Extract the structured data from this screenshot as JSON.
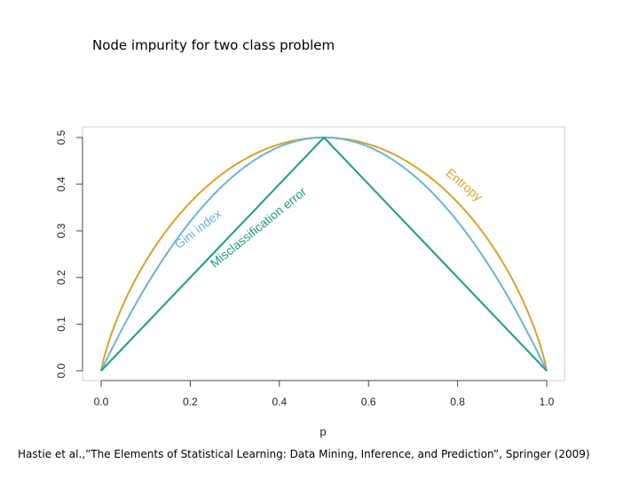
{
  "slide": {
    "title": "Node impurity for two class problem",
    "citation": "Hastie et al.,”The Elements of Statistical Learning: Data Mining, Inference, and Prediction”, Springer (2009)"
  },
  "chart_data": {
    "type": "line",
    "title": "",
    "xlabel": "p",
    "ylabel": "",
    "xlim": [
      0,
      1
    ],
    "ylim": [
      0,
      0.5
    ],
    "x_ticks": [
      0.0,
      0.2,
      0.4,
      0.6,
      0.8,
      1.0
    ],
    "x_tick_labels": [
      "0.0",
      "0.2",
      "0.4",
      "0.6",
      "0.8",
      "1.0"
    ],
    "y_ticks": [
      0.0,
      0.1,
      0.2,
      0.3,
      0.4,
      0.5
    ],
    "y_tick_labels": [
      "0.0",
      "0.1",
      "0.2",
      "0.3",
      "0.4",
      "0.5"
    ],
    "grid": false,
    "x": [
      0.0,
      0.05,
      0.1,
      0.15,
      0.2,
      0.25,
      0.3,
      0.35,
      0.4,
      0.45,
      0.5,
      0.55,
      0.6,
      0.65,
      0.7,
      0.75,
      0.8,
      0.85,
      0.9,
      0.95,
      1.0
    ],
    "series": [
      {
        "name": "Entropy",
        "color": "#d9a22b",
        "values": [
          0.0,
          0.143,
          0.234,
          0.305,
          0.361,
          0.406,
          0.441,
          0.467,
          0.485,
          0.496,
          0.5,
          0.496,
          0.485,
          0.467,
          0.441,
          0.406,
          0.361,
          0.305,
          0.234,
          0.143,
          0.0
        ]
      },
      {
        "name": "Gini index",
        "color": "#6ab4d8",
        "values": [
          0.0,
          0.095,
          0.18,
          0.255,
          0.32,
          0.375,
          0.42,
          0.455,
          0.48,
          0.495,
          0.5,
          0.495,
          0.48,
          0.455,
          0.42,
          0.375,
          0.32,
          0.255,
          0.18,
          0.095,
          0.0
        ]
      },
      {
        "name": "Misclassification error",
        "color": "#1f9a84",
        "values": [
          0.0,
          0.05,
          0.1,
          0.15,
          0.2,
          0.25,
          0.3,
          0.35,
          0.4,
          0.45,
          0.5,
          0.45,
          0.4,
          0.35,
          0.3,
          0.25,
          0.2,
          0.15,
          0.1,
          0.05,
          0.0
        ]
      }
    ]
  }
}
